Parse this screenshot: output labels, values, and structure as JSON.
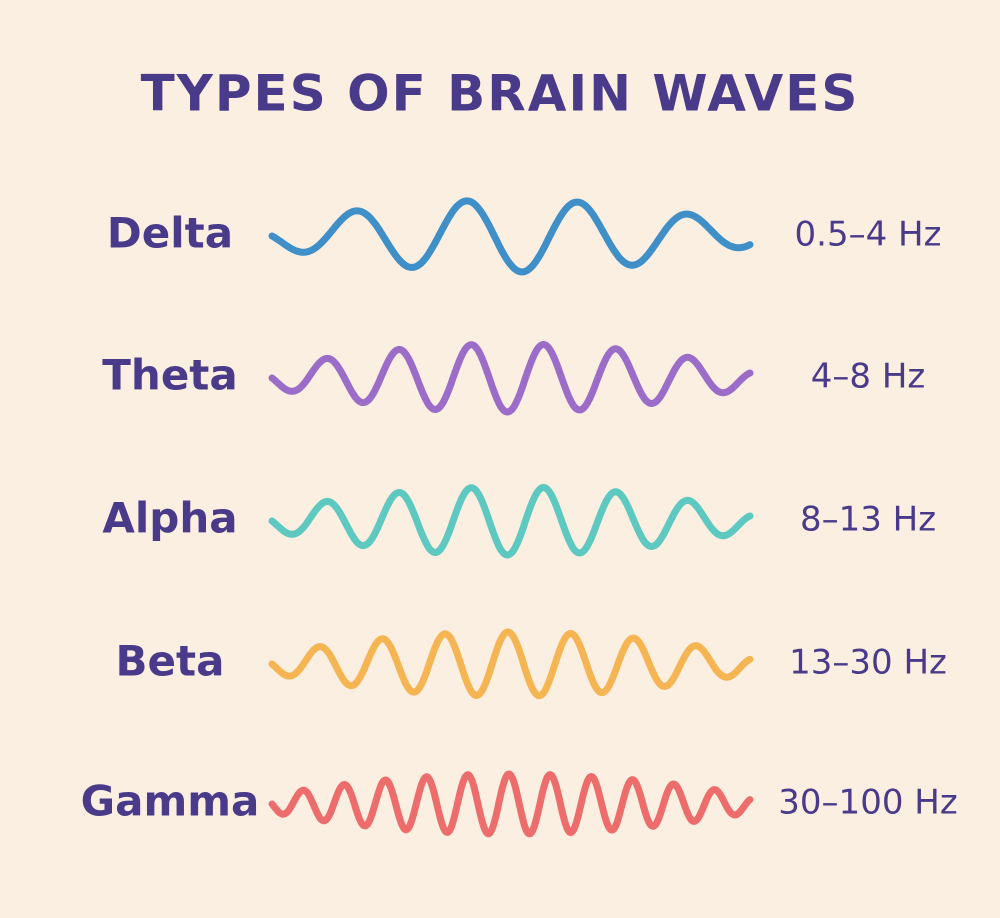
{
  "header": {
    "title": "TYPES OF BRAIN WAVES"
  },
  "waves": [
    {
      "name": "Delta",
      "range": "0.5–4 Hz",
      "color": "#3f8fc9"
    },
    {
      "name": "Theta",
      "range": "4–8 Hz",
      "color": "#9b6cc8"
    },
    {
      "name": "Alpha",
      "range": "8–13 Hz",
      "color": "#5ec9c1"
    },
    {
      "name": "Beta",
      "range": "13–30 Hz",
      "color": "#f5b553"
    },
    {
      "name": "Gamma",
      "range": "30–100 Hz",
      "color": "#ec6d6b"
    }
  ]
}
